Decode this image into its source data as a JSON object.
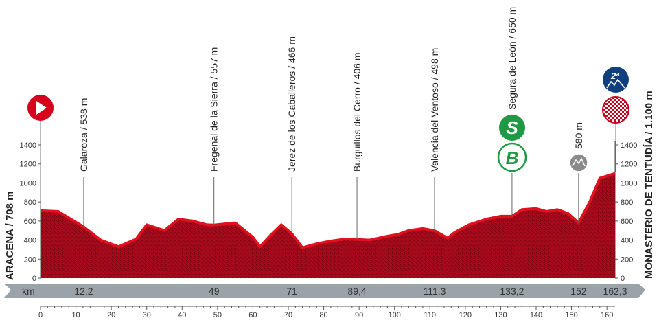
{
  "chart_data": {
    "type": "area",
    "start_label": "ARACENA / 708 m",
    "finish_label": "MONASTERIO DE TENTUDÍA / 1.100 m",
    "band_label": "km",
    "xlim": [
      0,
      162.3
    ],
    "ylim": [
      0,
      1500
    ],
    "y_ticks": [
      0,
      200,
      400,
      600,
      800,
      1000,
      1200,
      1400
    ],
    "x_ticks": [
      0,
      10,
      20,
      30,
      40,
      50,
      60,
      70,
      80,
      90,
      100,
      110,
      120,
      130,
      140,
      150,
      160
    ],
    "profile": {
      "x": [
        0,
        5,
        12.2,
        17,
        22,
        27,
        30,
        35,
        39,
        43,
        47,
        49,
        55,
        60,
        62,
        65,
        68,
        71,
        74,
        78,
        82,
        86,
        89.4,
        93,
        98,
        101,
        104,
        108,
        111.3,
        115,
        117,
        121,
        126,
        130,
        133.2,
        136,
        140,
        143,
        146,
        149,
        152,
        155,
        158,
        162.3
      ],
      "y": [
        708,
        700,
        538,
        400,
        330,
        410,
        560,
        500,
        620,
        600,
        560,
        557,
        580,
        430,
        330,
        450,
        560,
        466,
        320,
        360,
        390,
        410,
        406,
        400,
        440,
        460,
        500,
        520,
        498,
        420,
        480,
        560,
        620,
        650,
        650,
        720,
        730,
        700,
        720,
        680,
        580,
        790,
        1050,
        1100
      ]
    },
    "waypoints": [
      {
        "name": "Galaroza / 538 m",
        "km": 12.2,
        "km_label": "12,2",
        "alt": 538
      },
      {
        "name": "Fregenal de la Sierra / 557 m",
        "km": 49,
        "km_label": "49",
        "alt": 557
      },
      {
        "name": "Jerez de los Caballeros / 466 m",
        "km": 71,
        "km_label": "71",
        "alt": 466
      },
      {
        "name": "Burguillos del Cerro / 406 m",
        "km": 89.4,
        "km_label": "89,4",
        "alt": 406
      },
      {
        "name": "Valencia del Ventoso / 498 m",
        "km": 111.3,
        "km_label": "111,3",
        "alt": 498
      },
      {
        "name": "Segura de León / 650 m",
        "km": 133.2,
        "km_label": "133,2",
        "alt": 650
      },
      {
        "name": "580 m",
        "km": 152,
        "km_label": "152",
        "alt": 580
      }
    ],
    "finish_km_label": "162,3",
    "sprint_letter": "S",
    "bonus_letter": "B",
    "climb_category": "2ª",
    "colors": {
      "profile": "#b8091d",
      "profile_top": "#e0101f",
      "band": "#9aa3aa",
      "start_marker": "#d6001c",
      "sprint": "#1e9a45",
      "climb": "#0f3f7d",
      "finish": "#c8001c"
    }
  }
}
